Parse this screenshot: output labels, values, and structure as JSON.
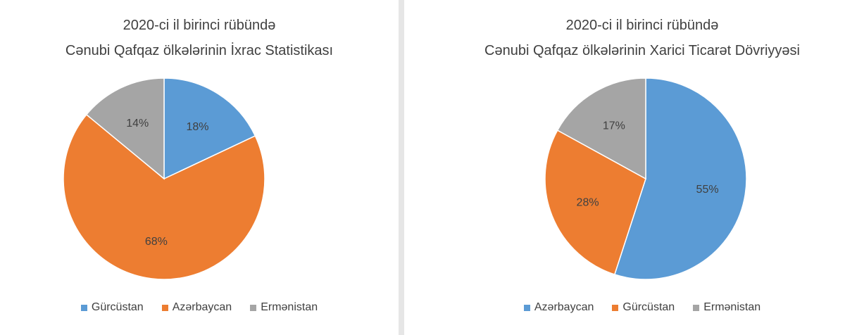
{
  "colors": {
    "blue": "#5b9bd5",
    "orange": "#ed7d31",
    "gray": "#a5a5a5"
  },
  "chart_data": [
    {
      "type": "pie",
      "title_line1": "2020-ci il birinci rübündə",
      "title_line2": "Cənubi Qafqaz ölkələrinin İxrac Statistikası",
      "categories": [
        "Gürcüstan",
        "Azərbaycan",
        "Ermənistan"
      ],
      "values": [
        18,
        68,
        14
      ],
      "value_labels": [
        "18%",
        "68%",
        "14%"
      ],
      "colors": [
        "#5b9bd5",
        "#ed7d31",
        "#a5a5a5"
      ],
      "legend_position": "bottom"
    },
    {
      "type": "pie",
      "title_line1": "2020-ci il birinci rübündə",
      "title_line2": "Cənubi Qafqaz ölkələrinin Xarici Ticarət Dövriyyəsi",
      "categories": [
        "Azərbaycan",
        "Gürcüstan",
        "Ermənistan"
      ],
      "values": [
        55,
        28,
        17
      ],
      "value_labels": [
        "55%",
        "28%",
        "17%"
      ],
      "colors": [
        "#5b9bd5",
        "#ed7d31",
        "#a5a5a5"
      ],
      "legend_position": "bottom"
    }
  ]
}
